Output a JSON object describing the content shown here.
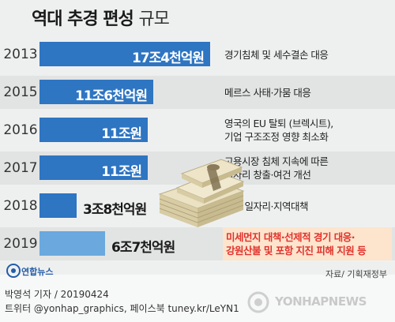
{
  "title_bold": "역대 추경 편성",
  "title_light": "규모",
  "chart_data": {
    "type": "bar",
    "orientation": "horizontal",
    "title": "역대 추경 편성 규모",
    "categories": [
      "2013",
      "2015",
      "2016",
      "2017",
      "2018",
      "2019"
    ],
    "values": [
      17.4,
      11.6,
      11.0,
      11.0,
      3.8,
      6.7
    ],
    "value_labels": [
      "17조4천억원",
      "11조6천억원",
      "11조원",
      "11조원",
      "3조8천억원",
      "6조7천억원"
    ],
    "descriptions": [
      [
        "경기침체 및 세수결손 대응"
      ],
      [
        "메르스 사태·가뭄 대응"
      ],
      [
        "영국의 EU 탈퇴 (브렉시트),",
        "기업 구조조정 영향 최소화"
      ],
      [
        "고용시장 침체 지속에 따른",
        "일자리 창출·여건 개선"
      ],
      [
        "청년 일자리·지역대책"
      ],
      [
        "미세먼지 대책·선제적 경기 대응·",
        "강원산불 및 포항 지진 피해 지원 등"
      ]
    ],
    "colors": [
      "#2e75c2",
      "#2e75c2",
      "#2e75c2",
      "#2e75c2",
      "#2e75c2",
      "#6aa8de"
    ],
    "highlight_index": 5,
    "highlight_text_color": "#e0322c",
    "highlight_bg_color": "#fde4cd"
  },
  "logo_text": "연합뉴스",
  "source": "자료/ 기획재정부",
  "credit_line1": "박영석 기자 / 20190424",
  "credit_line2": "트위터 @yonhap_graphics, 페이스북 tuney.kr/LeYN1",
  "watermark": "YONHAPNEWS"
}
